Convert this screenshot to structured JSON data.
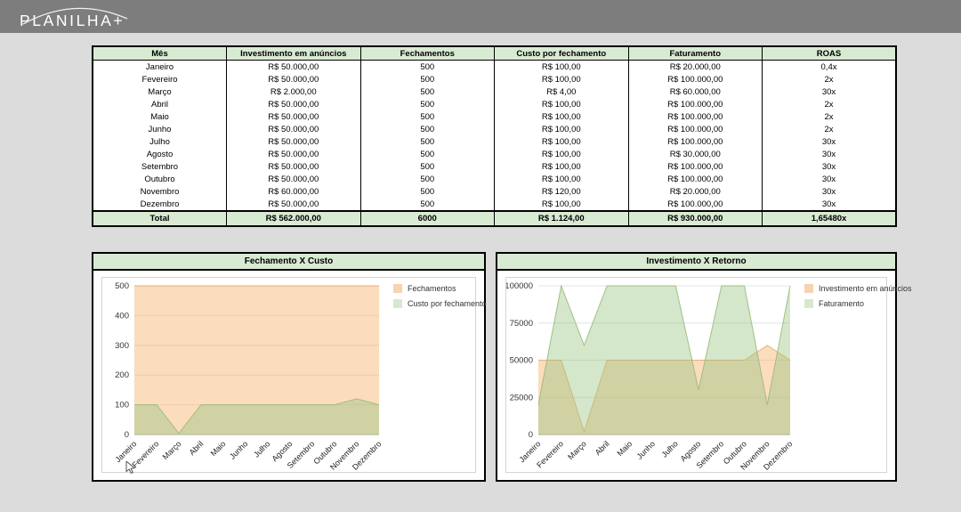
{
  "header": {
    "logo_text": "PLANILHA+",
    "bar_color": "#7d7d7d"
  },
  "colors": {
    "accent_green": "#d9ead3",
    "series_orange": "#f6b26b",
    "series_green": "#93c47d"
  },
  "table": {
    "columns": [
      "Mês",
      "Investimento em anúncios",
      "Fechamentos",
      "Custo por fechamento",
      "Faturamento",
      "ROAS"
    ],
    "rows": [
      [
        "Janeiro",
        "R$ 50.000,00",
        "500",
        "R$ 100,00",
        "R$ 20.000,00",
        "0,4x"
      ],
      [
        "Fevereiro",
        "R$ 50.000,00",
        "500",
        "R$ 100,00",
        "R$ 100.000,00",
        "2x"
      ],
      [
        "Março",
        "R$ 2.000,00",
        "500",
        "R$ 4,00",
        "R$ 60.000,00",
        "30x"
      ],
      [
        "Abril",
        "R$ 50.000,00",
        "500",
        "R$ 100,00",
        "R$ 100.000,00",
        "2x"
      ],
      [
        "Maio",
        "R$ 50.000,00",
        "500",
        "R$ 100,00",
        "R$ 100.000,00",
        "2x"
      ],
      [
        "Junho",
        "R$ 50.000,00",
        "500",
        "R$ 100,00",
        "R$ 100.000,00",
        "2x"
      ],
      [
        "Julho",
        "R$ 50.000,00",
        "500",
        "R$ 100,00",
        "R$ 100.000,00",
        "30x"
      ],
      [
        "Agosto",
        "R$ 50.000,00",
        "500",
        "R$ 100,00",
        "R$ 30.000,00",
        "30x"
      ],
      [
        "Setembro",
        "R$ 50.000,00",
        "500",
        "R$ 100,00",
        "R$ 100.000,00",
        "30x"
      ],
      [
        "Outubro",
        "R$ 50.000,00",
        "500",
        "R$ 100,00",
        "R$ 100.000,00",
        "30x"
      ],
      [
        "Novembro",
        "R$ 60.000,00",
        "500",
        "R$ 120,00",
        "R$ 20.000,00",
        "30x"
      ],
      [
        "Dezembro",
        "R$ 50.000,00",
        "500",
        "R$ 100,00",
        "R$ 100.000,00",
        "30x"
      ]
    ],
    "total": [
      "Total",
      "R$ 562.000,00",
      "6000",
      "R$ 1.124,00",
      "R$ 930.000,00",
      "1,65480x"
    ]
  },
  "chart_data": [
    {
      "type": "area",
      "title": "Fechamento X Custo",
      "categories": [
        "Janeiro",
        "Fevereiro",
        "Março",
        "Abril",
        "Maio",
        "Junho",
        "Julho",
        "Agosto",
        "Setembro",
        "Outubro",
        "Novembro",
        "Dezembro"
      ],
      "series": [
        {
          "name": "Fechamentos",
          "values": [
            500,
            500,
            500,
            500,
            500,
            500,
            500,
            500,
            500,
            500,
            500,
            500
          ]
        },
        {
          "name": "Custo por fechamento",
          "values": [
            100,
            100,
            4,
            100,
            100,
            100,
            100,
            100,
            100,
            100,
            120,
            100
          ]
        }
      ],
      "styles": [
        {
          "fill": "rgba(246,178,107,0.45)",
          "stroke": "rgba(228,156,94,0.7)",
          "legend": "#f8d3b0"
        },
        {
          "fill": "rgba(147,196,125,0.40)",
          "stroke": "rgba(152,186,124,0.9)",
          "legend": "#d8e8cf"
        }
      ],
      "ylim": [
        0,
        500
      ],
      "yticks": [
        0,
        100,
        200,
        300,
        400,
        500
      ],
      "grid": true,
      "legend_position": "right"
    },
    {
      "type": "area",
      "title": "Investimento X Retorno",
      "categories": [
        "Janeiro",
        "Fevereiro",
        "Março",
        "Abril",
        "Maio",
        "Junho",
        "Julho",
        "Agosto",
        "Setembro",
        "Outubro",
        "Novembro",
        "Dezembro"
      ],
      "series": [
        {
          "name": "Investimento em anúncios",
          "values": [
            50000,
            50000,
            2000,
            50000,
            50000,
            50000,
            50000,
            50000,
            50000,
            50000,
            60000,
            50000
          ]
        },
        {
          "name": "Faturamento",
          "values": [
            20000,
            100000,
            60000,
            100000,
            100000,
            100000,
            100000,
            30000,
            100000,
            100000,
            20000,
            100000
          ]
        }
      ],
      "styles": [
        {
          "fill": "rgba(246,178,107,0.45)",
          "stroke": "rgba(228,156,94,0.7)",
          "legend": "#f8d3b0"
        },
        {
          "fill": "rgba(147,196,125,0.40)",
          "stroke": "rgba(152,186,124,0.9)",
          "legend": "#d8e8cf"
        }
      ],
      "ylim": [
        0,
        100000
      ],
      "yticks": [
        0,
        25000,
        50000,
        75000,
        100000
      ],
      "grid": true,
      "legend_position": "right"
    }
  ]
}
